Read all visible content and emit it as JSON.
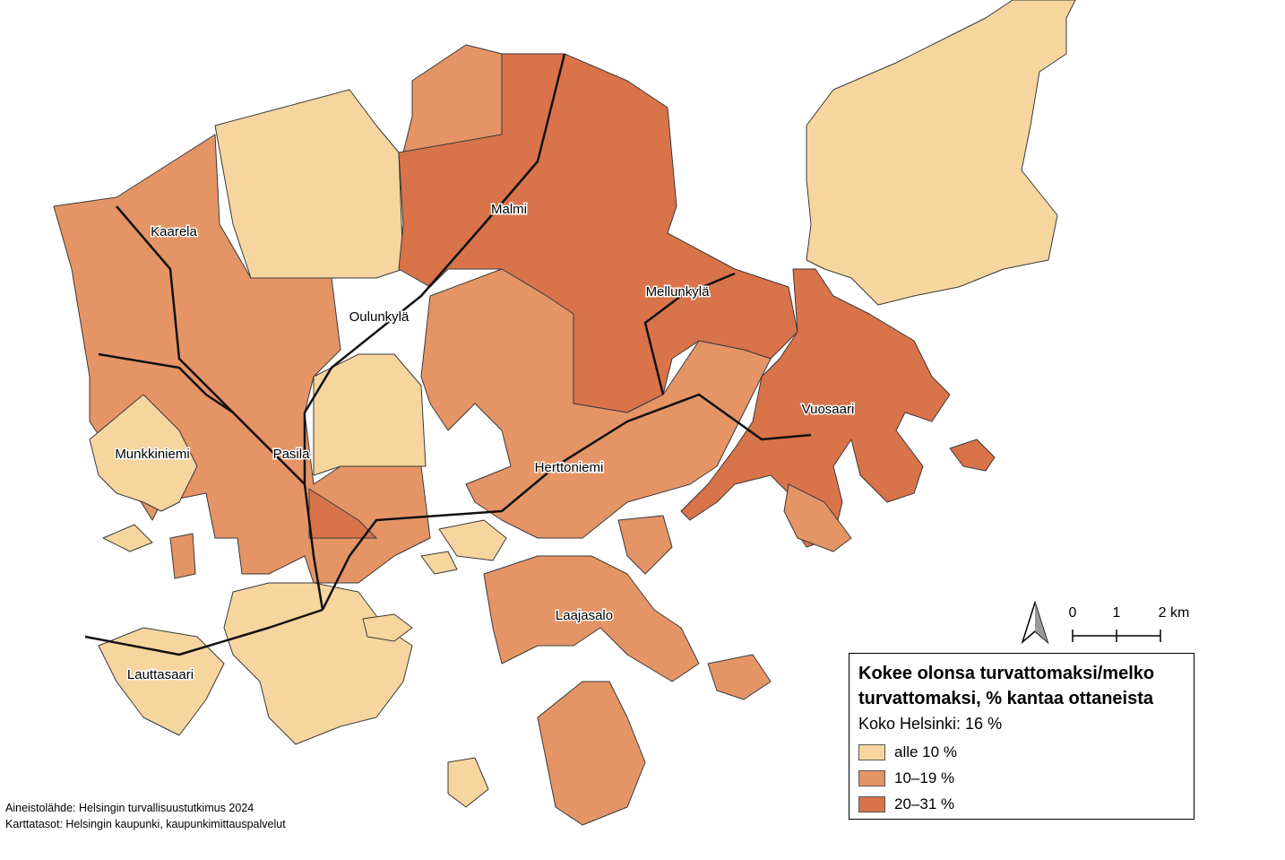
{
  "map": {
    "labels": [
      "Kaarela",
      "Malmi",
      "Mellunkylä",
      "Oulunkylä",
      "Vuosaari",
      "Munkkiniemi",
      "Pasila",
      "Herttoniemi",
      "Laajasalo",
      "Lauttasaari"
    ]
  },
  "legend": {
    "title": "Kokee olonsa turvattomaksi/melko turvattomaksi, % kantaa ottaneista",
    "subtitle": "Koko Helsinki: 16 %",
    "classes": [
      {
        "label": "alle 10 %",
        "color": "#f7d59f"
      },
      {
        "label": "10–19 %",
        "color": "#e59466"
      },
      {
        "label": "20–31 %",
        "color": "#d9734a"
      }
    ]
  },
  "scale_bar": {
    "labels": [
      "0",
      "1",
      "2 km"
    ]
  },
  "source": [
    "Aineistolähde: Helsingin turvallisuustutkimus 2024",
    "Karttatasot: Helsingin kaupunki, kaupunkimittauspalvelut"
  ]
}
